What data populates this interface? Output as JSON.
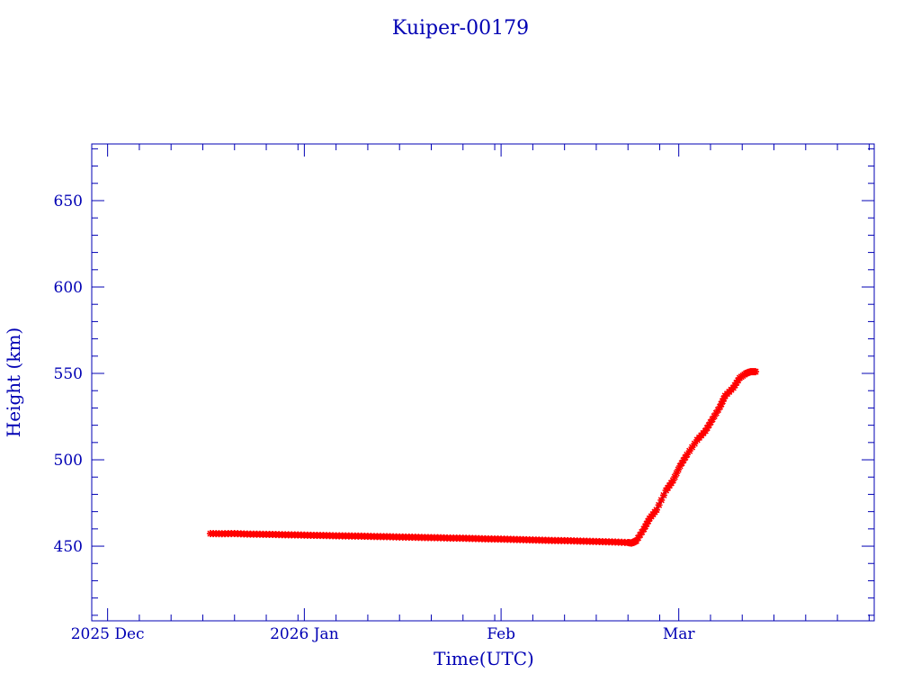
{
  "chart_data": {
    "type": "scatter",
    "title": "Kuiper-00179",
    "xlabel": "Time(UTC)",
    "ylabel": "Height (km)",
    "x_units": "days since 2025-12-01",
    "xlim": [
      -2.5,
      120.8
    ],
    "ylim": [
      406.8,
      682.8
    ],
    "yticks": [
      450,
      500,
      550,
      600,
      650
    ],
    "xticks": [
      {
        "day": 0,
        "label": "2025 Dec"
      },
      {
        "day": 31,
        "label": "2026 Jan"
      },
      {
        "day": 62,
        "label": "Feb"
      },
      {
        "day": 90,
        "label": "Mar"
      }
    ],
    "colors": {
      "axis": "#0000b4",
      "marker": "#ff0000",
      "line": "#33e0f0"
    },
    "series": [
      {
        "name": "Height",
        "points": [
          [
            16.2,
            457.3
          ],
          [
            18,
            457.2
          ],
          [
            20,
            457.3
          ],
          [
            22,
            457.0
          ],
          [
            24,
            456.9
          ],
          [
            26,
            456.8
          ],
          [
            28,
            456.6
          ],
          [
            30,
            456.5
          ],
          [
            32,
            456.3
          ],
          [
            34,
            456.2
          ],
          [
            36,
            456.0
          ],
          [
            38,
            455.9
          ],
          [
            40,
            455.8
          ],
          [
            42,
            455.6
          ],
          [
            44,
            455.5
          ],
          [
            46,
            455.3
          ],
          [
            48,
            455.2
          ],
          [
            50,
            455.0
          ],
          [
            52,
            454.9
          ],
          [
            54,
            454.7
          ],
          [
            56,
            454.6
          ],
          [
            58,
            454.4
          ],
          [
            60,
            454.2
          ],
          [
            62,
            454.1
          ],
          [
            64,
            453.9
          ],
          [
            66,
            453.7
          ],
          [
            68,
            453.5
          ],
          [
            70,
            453.3
          ],
          [
            72,
            453.2
          ],
          [
            74,
            453.0
          ],
          [
            76,
            452.8
          ],
          [
            78,
            452.6
          ],
          [
            80,
            452.4
          ],
          [
            82,
            452.1
          ],
          [
            82.6,
            451.8
          ],
          [
            83.3,
            453.1
          ],
          [
            84.5,
            459.9
          ],
          [
            85.4,
            466.0
          ],
          [
            86.5,
            471.0
          ],
          [
            88.0,
            482.3
          ],
          [
            89.1,
            488.0
          ],
          [
            90.2,
            496.4
          ],
          [
            91.3,
            503.0
          ],
          [
            92.9,
            511.5
          ],
          [
            94.2,
            516.7
          ],
          [
            95.3,
            523.4
          ],
          [
            96.5,
            530.7
          ],
          [
            97.3,
            537.0
          ],
          [
            98.6,
            541.7
          ],
          [
            99.6,
            547.4
          ],
          [
            100.6,
            550.0
          ],
          [
            101.3,
            551.0
          ],
          [
            102.1,
            551.0
          ]
        ]
      }
    ]
  }
}
